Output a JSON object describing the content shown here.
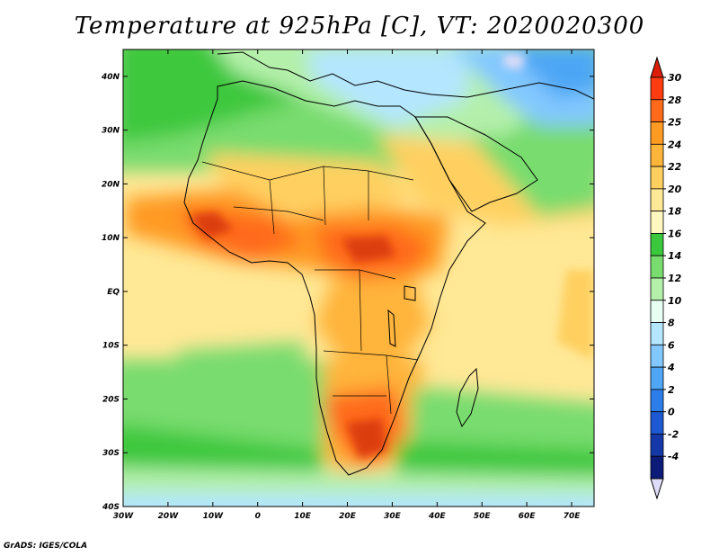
{
  "title": "Temperature at 925hPa [C], VT: 2020020300",
  "footer": "GrADS: IGES/COLA",
  "map": {
    "lon_range": [
      -30,
      75
    ],
    "lat_range": [
      -40,
      45
    ],
    "lon_ticks": [
      "30W",
      "20W",
      "10W",
      "0",
      "10E",
      "20E",
      "30E",
      "40E",
      "50E",
      "60E",
      "70E"
    ],
    "lat_ticks": [
      "40N",
      "30N",
      "20N",
      "10N",
      "EQ",
      "10S",
      "20S",
      "30S",
      "40S"
    ]
  },
  "colorbar": {
    "labels": [
      "30",
      "28",
      "25",
      "24",
      "22",
      "20",
      "18",
      "16",
      "14",
      "12",
      "10",
      "8",
      "6",
      "4",
      "2",
      "0",
      "-2",
      "-4"
    ],
    "colors": [
      "#ff3b10",
      "#ff6a1a",
      "#ff9a22",
      "#ffb43a",
      "#ffd060",
      "#ffe896",
      "#fff7c0",
      "#3cc83c",
      "#78dc6e",
      "#b4f0aa",
      "#e8fff4",
      "#b4e6ff",
      "#82c8ff",
      "#4ea6f5",
      "#2c7dea",
      "#1e58d2",
      "#1438a8",
      "#0c1a78"
    ],
    "top_color": "#dc1e08",
    "bottom_color": "#dcdcf8"
  }
}
